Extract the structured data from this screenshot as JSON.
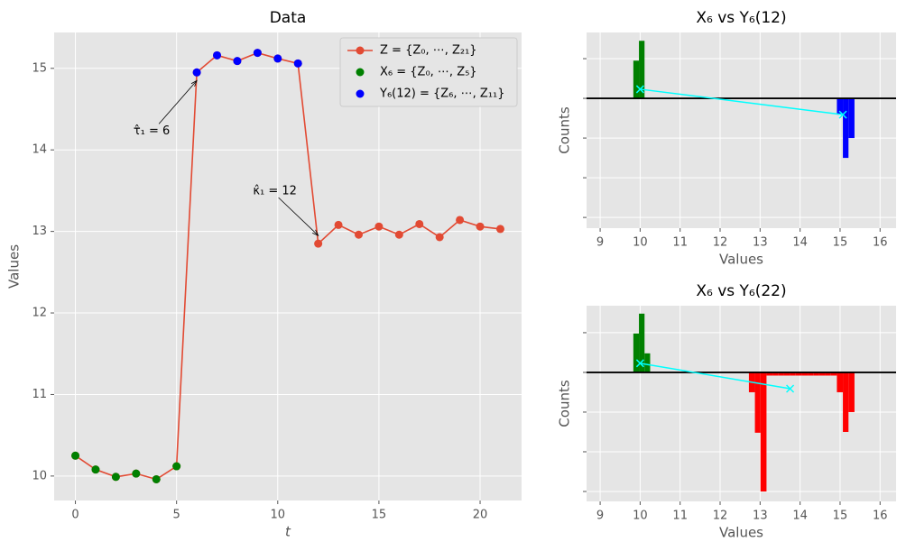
{
  "chart_data": [
    {
      "type": "line",
      "title": "Data",
      "xlabel": "t",
      "ylabel": "Values",
      "xlim": [
        -1.05,
        22.05
      ],
      "ylim": [
        9.7,
        15.44
      ],
      "xticks": [
        0,
        5,
        10,
        15,
        20
      ],
      "yticks": [
        10,
        11,
        12,
        13,
        14,
        15
      ],
      "grid": true,
      "ytick_labels": true,
      "legend": "upper right",
      "series": [
        {
          "name": "Z = {Z₀, ⋯, Z₂₁}",
          "color": "#e24a33",
          "line": true,
          "x": [
            0,
            1,
            2,
            3,
            4,
            5,
            6,
            7,
            8,
            9,
            10,
            11,
            12,
            13,
            14,
            15,
            16,
            17,
            18,
            19,
            20,
            21
          ],
          "values": [
            10.25,
            10.08,
            9.99,
            10.03,
            9.96,
            10.12,
            14.95,
            15.16,
            15.09,
            15.19,
            15.12,
            15.06,
            12.85,
            13.08,
            12.96,
            13.06,
            12.96,
            13.09,
            12.93,
            13.14,
            13.06,
            13.03
          ]
        },
        {
          "name": "X₆ = {Z₀, ⋯, Z₅}",
          "color": "#008000",
          "line": false,
          "x": [
            0,
            1,
            2,
            3,
            4,
            5
          ],
          "values": [
            10.25,
            10.08,
            9.99,
            10.03,
            9.96,
            10.12
          ]
        },
        {
          "name": "Y₆(12) = {Z₆, ⋯, Z₁₁}",
          "color": "#0000ff",
          "line": false,
          "x": [
            6,
            7,
            8,
            9,
            10,
            11
          ],
          "values": [
            14.95,
            15.16,
            15.09,
            15.19,
            15.12,
            15.06
          ]
        }
      ],
      "annotations": [
        {
          "text": "τ̂₁ = 6",
          "xy": [
            6,
            14.85
          ]
        },
        {
          "text": "κ̂₁ = 12",
          "xy": [
            12,
            12.95
          ]
        }
      ]
    },
    {
      "type": "histogram",
      "title": "X₆ vs Y₆(12)",
      "xlabel": "Values",
      "ylabel": "Counts",
      "xlim": [
        8.66,
        16.4
      ],
      "ylim": [
        -3.27,
        1.66
      ],
      "xticks": [
        9,
        10,
        11,
        12,
        13,
        14,
        15,
        16
      ],
      "yticks": [
        -3,
        -2,
        -1,
        0,
        1
      ],
      "grid": true,
      "ytick_labels": false,
      "hline": 0,
      "series": [
        {
          "color": "#008000",
          "bins": [
            9.83,
            9.97,
            10.11
          ],
          "values": [
            0.95,
            1.45
          ]
        },
        {
          "color": "#0000ff",
          "bins": [
            14.92,
            15.07,
            15.21,
            15.36
          ],
          "values": [
            -0.41,
            -1.5,
            -1.0
          ]
        }
      ],
      "mean_line": {
        "color": "#00ffff",
        "x": [
          10.0,
          15.07
        ],
        "values": [
          0.23,
          -0.41
        ]
      }
    },
    {
      "type": "histogram",
      "title": "X₆ vs Y₆(22)",
      "xlabel": "Values",
      "ylabel": "Counts",
      "xlim": [
        8.66,
        16.4
      ],
      "ylim": [
        -3.25,
        1.68
      ],
      "xticks": [
        9,
        10,
        11,
        12,
        13,
        14,
        15,
        16
      ],
      "yticks": [
        -3,
        -2,
        -1,
        0,
        1
      ],
      "grid": true,
      "ytick_labels": false,
      "hline": 0,
      "series": [
        {
          "color": "#008000",
          "bins": [
            9.83,
            9.97,
            10.11,
            10.25
          ],
          "values": [
            0.98,
            1.48,
            0.48
          ]
        },
        {
          "color": "#ff0000",
          "bins": [
            12.72,
            12.87,
            13.01,
            13.16,
            13.31,
            13.45,
            13.6,
            13.75,
            13.89,
            14.04,
            14.19,
            14.33,
            14.48,
            14.63,
            14.77,
            14.92,
            15.07,
            15.21,
            15.36
          ],
          "values": [
            -0.5,
            -1.52,
            -3.0,
            -0.08,
            -0.08,
            -0.08,
            -0.08,
            -0.08,
            -0.08,
            -0.08,
            -0.08,
            -0.08,
            -0.08,
            -0.08,
            -0.08,
            -0.5,
            -1.5,
            -1.0
          ]
        }
      ],
      "mean_line": {
        "color": "#00ffff",
        "x": [
          10.0,
          13.75
        ],
        "values": [
          0.23,
          -0.41
        ]
      }
    }
  ]
}
